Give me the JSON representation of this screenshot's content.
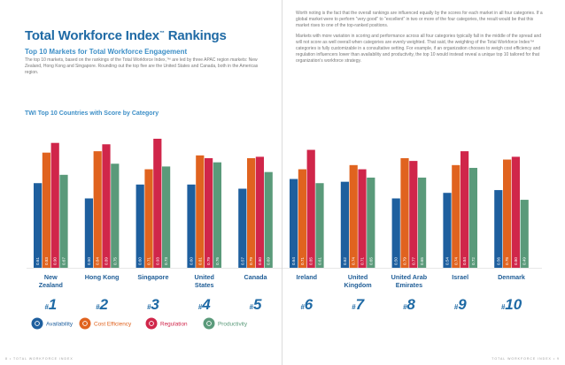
{
  "title": "Total Workforce Index",
  "title_mark": "™",
  "title_suffix": " Rankings",
  "subtitle": "Top 10 Markets for Total Workforce Engagement",
  "intro": "The top 10 markets, based on the rankings of the Total Workforce Index,™ are led by three APAC region markets: New Zealand, Hong Kong and Singapore. Rounding out the top five are the United States and Canada, both in the Americas region.",
  "right_paragraphs": [
    "Worth noting is the fact that the overall rankings are influenced equally by the scores for each market in all four categories. If a global market were to perform “very good” to “excellent” in two or more of the four categories, the result would be that this market rises to one of the top-ranked positions.",
    "Markets with more variation in scoring and performance across all four categories typically fall in the middle of the spread and will not score as well overall when categories are evenly weighted. That said, the weighting of the Total Workforce Index™ categories is fully customizable in a consultative setting. For example, if an organization chooses to weigh cost efficiency and regulation influencers lower than availability and productivity, the top 10 would instead reveal a unique top 10 tailored for that organization’s workforce strategy."
  ],
  "footer_left": "8  •  TOTAL WORKFORCE INDEX",
  "footer_right": "TOTAL WORKFORCE INDEX  •  9",
  "chart_data": {
    "type": "bar",
    "title": "TWI Top 10 Countries with Score by Category",
    "categories": [
      "New Zealand",
      "Hong Kong",
      "Singapore",
      "United States",
      "Canada",
      "Ireland",
      "United Kingdom",
      "United Arab Emirates",
      "Israel",
      "Denmark"
    ],
    "category_lines": [
      [
        "New",
        "Zealand"
      ],
      [
        "Hong Kong"
      ],
      [
        "Singapore"
      ],
      [
        "United",
        "States"
      ],
      [
        "Canada"
      ],
      [
        "Ireland"
      ],
      [
        "United",
        "Kingdom"
      ],
      [
        "United Arab",
        "Emirates"
      ],
      [
        "Israel"
      ],
      [
        "Denmark"
      ]
    ],
    "ranks": [
      "1",
      "2",
      "3",
      "4",
      "5",
      "6",
      "7",
      "8",
      "9",
      "10"
    ],
    "rank_prefix": "#",
    "ylim": [
      0,
      1
    ],
    "series": [
      {
        "name": "Availability",
        "color": "#1e5f9e",
        "values": [
          0.61,
          0.5,
          0.6,
          0.6,
          0.57,
          0.64,
          0.62,
          0.5,
          0.54,
          0.56
        ]
      },
      {
        "name": "Cost Efficiency",
        "color": "#e0631f",
        "values": [
          0.83,
          0.84,
          0.71,
          0.81,
          0.79,
          0.71,
          0.74,
          0.79,
          0.74,
          0.78
        ]
      },
      {
        "name": "Regulation",
        "color": "#d0264a",
        "values": [
          0.9,
          0.89,
          0.93,
          0.79,
          0.8,
          0.85,
          0.71,
          0.77,
          0.84,
          0.8
        ]
      },
      {
        "name": "Productivity",
        "color": "#5a9a7a",
        "values": [
          0.67,
          0.75,
          0.73,
          0.76,
          0.69,
          0.61,
          0.65,
          0.65,
          0.72,
          0.49
        ]
      }
    ]
  }
}
